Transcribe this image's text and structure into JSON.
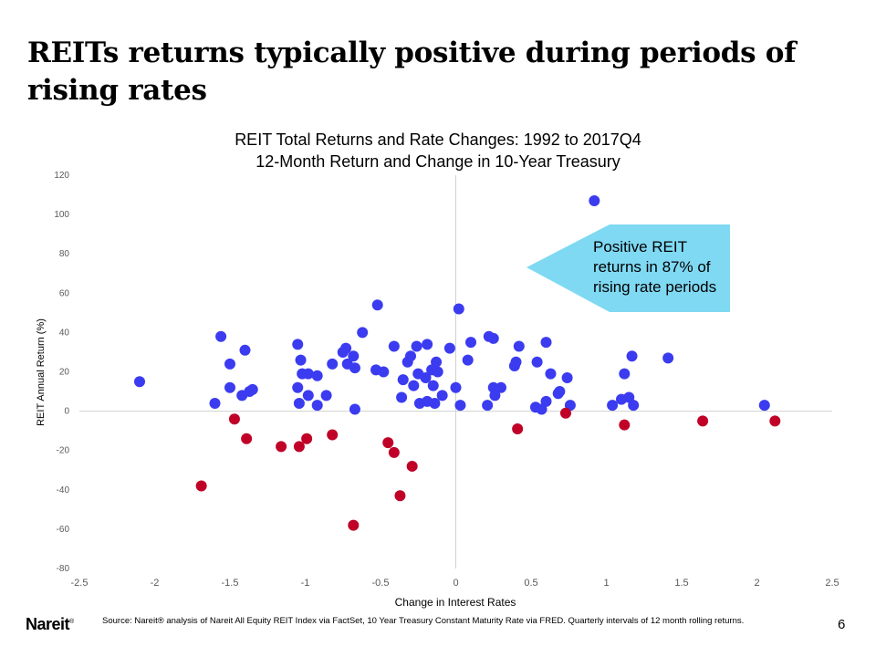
{
  "slide": {
    "title": "REITs returns typically positive during periods of rising rates",
    "page_number": "6",
    "logo_text": "Nareit",
    "logo_mark": "®",
    "source_note": "Source: Nareit® analysis of Nareit All Equity REIT  Index via FactSet, 10 Year Treasury Constant Maturity Rate via FRED.  Quarterly intervals of 12 month rolling returns."
  },
  "callout": {
    "text": "Positive REIT returns in 87% of rising rate periods",
    "color": "#7fd9f3"
  },
  "chart_data": {
    "type": "scatter",
    "title": "REIT Total Returns and Rate Changes: 1992 to 2017Q4",
    "subtitle": "12-Month Return and Change in 10-Year Treasury",
    "xlabel": "Change  in Interest Rates",
    "ylabel": "REIT  Annual Return  (%)",
    "xlim": [
      -2.5,
      2.5
    ],
    "ylim": [
      -80,
      120
    ],
    "x_ticks": [
      "-2.5",
      "-2",
      "-1.5",
      "-1",
      "-0.5",
      "0",
      "0.5",
      "1",
      "1.5",
      "2",
      "2.5"
    ],
    "y_ticks": [
      "-80",
      "-60",
      "-40",
      "-20",
      "0",
      "20",
      "40",
      "60",
      "80",
      "100",
      "120"
    ],
    "grid": false,
    "legend": "none",
    "series": [
      {
        "color": "#3b3bf0",
        "points": [
          [
            -2.1,
            15
          ],
          [
            -1.6,
            4
          ],
          [
            -1.56,
            38
          ],
          [
            -1.5,
            24
          ],
          [
            -1.5,
            12
          ],
          [
            -1.4,
            31
          ],
          [
            -1.42,
            8
          ],
          [
            -1.37,
            10
          ],
          [
            -1.35,
            11
          ],
          [
            -1.05,
            34
          ],
          [
            -1.03,
            26
          ],
          [
            -1.05,
            12
          ],
          [
            -1.04,
            4
          ],
          [
            -1.02,
            19
          ],
          [
            -0.98,
            19
          ],
          [
            -0.98,
            8
          ],
          [
            -0.92,
            18
          ],
          [
            -0.92,
            3
          ],
          [
            -0.86,
            8
          ],
          [
            -0.82,
            24
          ],
          [
            -0.75,
            30
          ],
          [
            -0.73,
            32
          ],
          [
            -0.72,
            24
          ],
          [
            -0.68,
            28
          ],
          [
            -0.67,
            22
          ],
          [
            -0.67,
            1
          ],
          [
            -0.62,
            40
          ],
          [
            -0.53,
            21
          ],
          [
            -0.52,
            54
          ],
          [
            -0.48,
            20
          ],
          [
            -0.41,
            33
          ],
          [
            -0.36,
            7
          ],
          [
            -0.35,
            16
          ],
          [
            -0.32,
            25
          ],
          [
            -0.3,
            28
          ],
          [
            -0.28,
            13
          ],
          [
            -0.26,
            33
          ],
          [
            -0.25,
            19
          ],
          [
            -0.24,
            4
          ],
          [
            -0.2,
            17
          ],
          [
            -0.19,
            34
          ],
          [
            -0.19,
            5
          ],
          [
            -0.16,
            21
          ],
          [
            -0.15,
            13
          ],
          [
            -0.14,
            4
          ],
          [
            -0.13,
            25
          ],
          [
            -0.12,
            20
          ],
          [
            -0.09,
            8
          ],
          [
            -0.04,
            32
          ],
          [
            0.0,
            12
          ],
          [
            0.02,
            52
          ],
          [
            0.03,
            3
          ],
          [
            0.08,
            26
          ],
          [
            0.1,
            35
          ],
          [
            0.21,
            3
          ],
          [
            0.22,
            38
          ],
          [
            0.25,
            37
          ],
          [
            0.25,
            12
          ],
          [
            0.26,
            8
          ],
          [
            0.3,
            12
          ],
          [
            0.39,
            23
          ],
          [
            0.4,
            25
          ],
          [
            0.42,
            33
          ],
          [
            0.53,
            2
          ],
          [
            0.54,
            25
          ],
          [
            0.57,
            1
          ],
          [
            0.6,
            35
          ],
          [
            0.6,
            5
          ],
          [
            0.63,
            19
          ],
          [
            0.68,
            9
          ],
          [
            0.69,
            10
          ],
          [
            0.74,
            17
          ],
          [
            0.76,
            3
          ],
          [
            0.92,
            107
          ],
          [
            1.04,
            3
          ],
          [
            1.1,
            6
          ],
          [
            1.12,
            19
          ],
          [
            1.15,
            7
          ],
          [
            1.17,
            28
          ],
          [
            1.18,
            3
          ],
          [
            1.41,
            27
          ],
          [
            2.05,
            3
          ]
        ]
      },
      {
        "color": "#c00027",
        "points": [
          [
            -1.69,
            -38
          ],
          [
            -1.47,
            -4
          ],
          [
            -1.39,
            -14
          ],
          [
            -1.16,
            -18
          ],
          [
            -1.04,
            -18
          ],
          [
            -0.99,
            -14
          ],
          [
            -0.82,
            -12
          ],
          [
            -0.68,
            -58
          ],
          [
            -0.45,
            -16
          ],
          [
            -0.41,
            -21
          ],
          [
            -0.37,
            -43
          ],
          [
            -0.29,
            -28
          ],
          [
            0.41,
            -9
          ],
          [
            0.73,
            -1
          ],
          [
            1.12,
            -7
          ],
          [
            1.64,
            -5
          ],
          [
            2.12,
            -5
          ]
        ]
      }
    ]
  }
}
